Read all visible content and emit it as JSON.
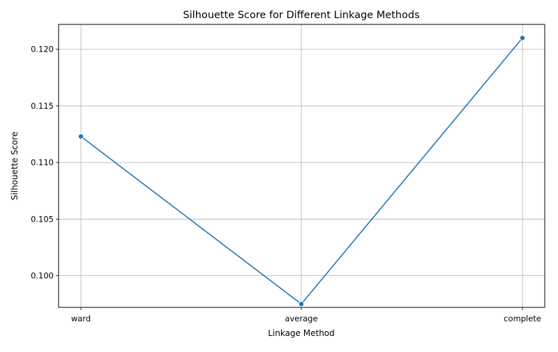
{
  "chart_data": {
    "type": "line",
    "title": "Silhouette Score for Different Linkage Methods",
    "xlabel": "Linkage Method",
    "ylabel": "Silhouette Score",
    "categories": [
      "ward",
      "average",
      "complete"
    ],
    "values": [
      0.1123,
      0.0975,
      0.121
    ],
    "ylim": [
      0.0972,
      0.1222
    ],
    "yticks": [
      0.1,
      0.105,
      0.11,
      0.115,
      0.12
    ],
    "ytick_labels": [
      "0.100",
      "0.105",
      "0.110",
      "0.115",
      "0.120"
    ],
    "grid": true,
    "legend": "none",
    "colors": {
      "line": "#1f77b4",
      "grid": "#b0b0b0",
      "axes": "#000000"
    }
  }
}
